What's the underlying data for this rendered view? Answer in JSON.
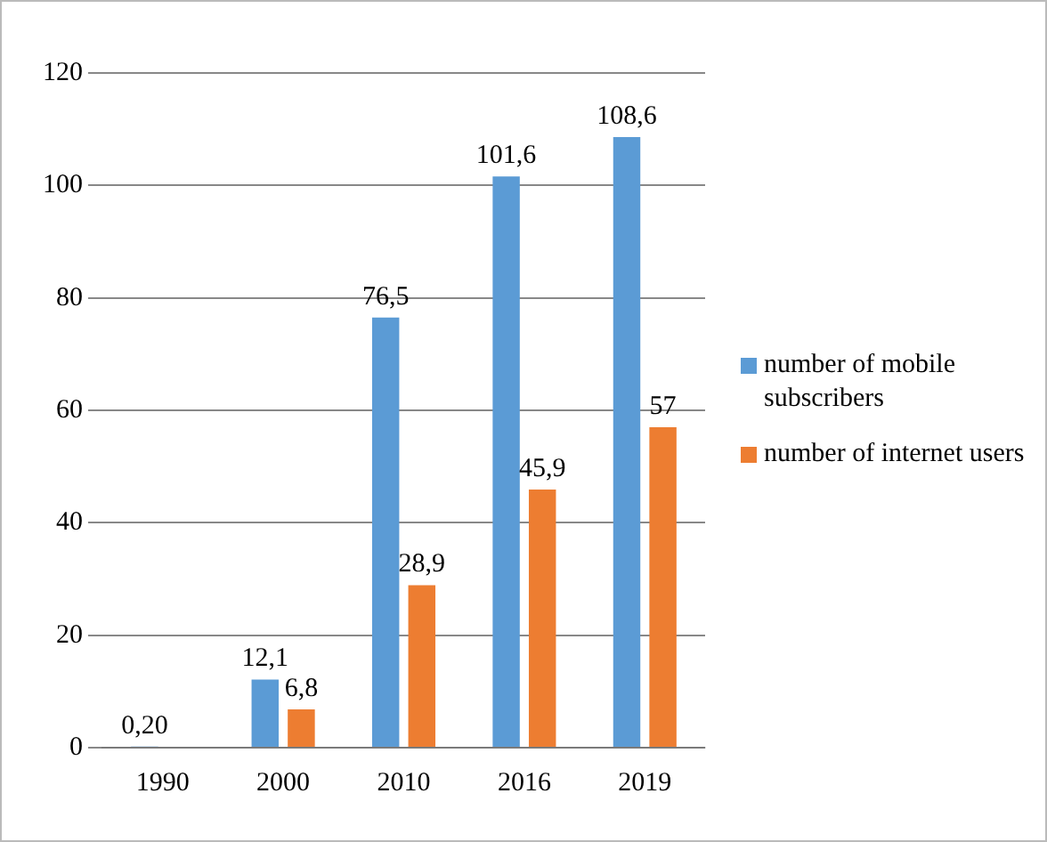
{
  "chart_data": {
    "type": "bar",
    "categories": [
      "1990",
      "2000",
      "2010",
      "2016",
      "2019"
    ],
    "series": [
      {
        "name": "number of mobile subscribers",
        "color": "#5b9bd5",
        "values": [
          0.2,
          12.1,
          76.5,
          101.6,
          108.6
        ],
        "value_labels": [
          "0,20",
          "12,1",
          "76,5",
          "101,6",
          "108,6"
        ]
      },
      {
        "name": "number of internet users",
        "color": "#ed7d31",
        "values": [
          0,
          6.8,
          28.9,
          45.9,
          57
        ],
        "value_labels": [
          null,
          "6,8",
          "28,9",
          "45,9",
          "57"
        ]
      }
    ],
    "ylim": [
      0,
      120
    ],
    "yticks": [
      0,
      20,
      40,
      60,
      80,
      100,
      120
    ],
    "grid": "y",
    "legend": "right"
  }
}
